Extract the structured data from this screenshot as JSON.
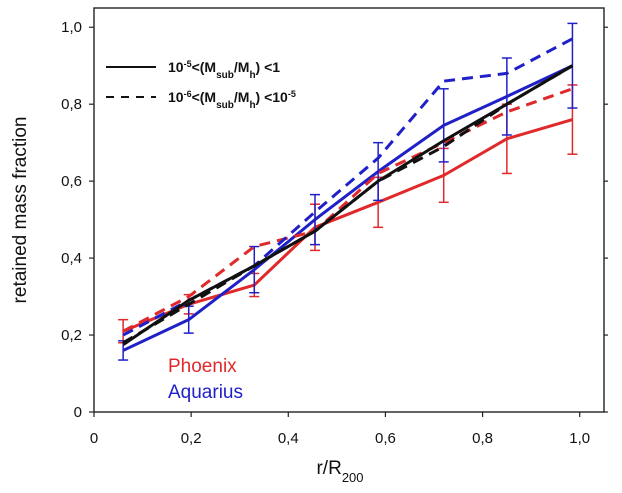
{
  "chart_data": {
    "type": "line",
    "xlabel_main": "r/R",
    "xlabel_sub": "200",
    "ylabel": "retained mass fraction",
    "xlim": [
      0,
      1.05
    ],
    "ylim": [
      0,
      1.05
    ],
    "x_ticks": [
      0,
      0.2,
      0.4,
      0.6,
      0.8,
      1.0
    ],
    "x_tick_labels": [
      "0",
      "0,2",
      "0,4",
      "0,6",
      "0,8",
      "1,0"
    ],
    "y_ticks": [
      0,
      0.2,
      0.4,
      0.6,
      0.8,
      1.0
    ],
    "y_tick_labels": [
      "0",
      "0,2",
      "0,4",
      "0,6",
      "0,8",
      "1,0"
    ],
    "legend": {
      "placement": "top-left",
      "solid": {
        "base": "10",
        "exp": "-5",
        "a": "<(M",
        "sub": "sub",
        "b": "/M",
        "sub2": "h",
        "c": ") <1"
      },
      "dashed": {
        "base": "10",
        "exp": "-6",
        "a": "<(M",
        "sub": "sub",
        "b": "/M",
        "sub2": "h",
        "c": ") <10",
        "exp2": "-5"
      }
    },
    "labels": {
      "phoenix": "Phoenix",
      "aquarius": "Aquarius"
    },
    "colors": {
      "phoenix": "#e0292a",
      "aquarius": "#2020c8",
      "black": "#111111"
    },
    "x": [
      0.06,
      0.195,
      0.33,
      0.455,
      0.585,
      0.72,
      0.85,
      0.985
    ],
    "series": [
      {
        "key": "phoenix-solid",
        "color": "#e0292a",
        "style": "solid",
        "values": [
          0.21,
          0.28,
          0.33,
          0.48,
          0.545,
          0.615,
          0.71,
          0.76
        ],
        "err": [
          0.03,
          0.025,
          0.03,
          0.06,
          0.065,
          0.07,
          0.09,
          0.09
        ]
      },
      {
        "key": "aquarius-solid",
        "color": "#2020c8",
        "style": "solid",
        "values": [
          0.16,
          0.24,
          0.37,
          0.5,
          0.625,
          0.745,
          0.82,
          0.9
        ],
        "err": [
          0.025,
          0.035,
          0.06,
          0.065,
          0.075,
          0.095,
          0.1,
          0.11
        ]
      },
      {
        "key": "phoenix-dashed",
        "color": "#e0292a",
        "style": "dashed",
        "values": [
          0.21,
          0.3,
          0.43,
          0.47,
          0.62,
          0.7,
          0.78,
          0.84
        ]
      },
      {
        "key": "aquarius-dashed",
        "color": "#2020c8",
        "style": "dashed",
        "values": [
          0.2,
          0.29,
          0.38,
          0.52,
          0.66,
          0.86,
          0.88,
          0.97
        ]
      },
      {
        "key": "black-dashed",
        "color": "#111111",
        "style": "dashed",
        "values": [
          0.18,
          0.28,
          0.38,
          0.47,
          0.6,
          0.69,
          0.8,
          0.9
        ]
      },
      {
        "key": "black-solid",
        "color": "#111111",
        "style": "solid",
        "values": [
          0.175,
          0.29,
          0.38,
          0.47,
          0.6,
          0.705,
          0.8,
          0.9
        ]
      }
    ]
  }
}
